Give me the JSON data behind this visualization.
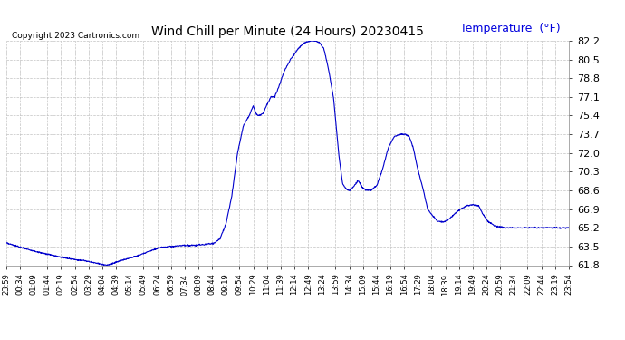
{
  "title": "Wind Chill per Minute (24 Hours) 20230415",
  "ylabel": "Temperature  (°F)",
  "copyright": "Copyright 2023 Cartronics.com",
  "ylabel_color": "#0000dd",
  "line_color": "#0000cc",
  "background_color": "#ffffff",
  "grid_color": "#bbbbbb",
  "ylim": [
    61.8,
    82.2
  ],
  "yticks": [
    61.8,
    63.5,
    65.2,
    66.9,
    68.6,
    70.3,
    72.0,
    73.7,
    75.4,
    77.1,
    78.8,
    80.5,
    82.2
  ],
  "xtick_labels": [
    "23:59",
    "00:34",
    "01:09",
    "01:44",
    "02:19",
    "02:54",
    "03:29",
    "04:04",
    "04:39",
    "05:14",
    "05:49",
    "06:24",
    "06:59",
    "07:34",
    "08:09",
    "08:44",
    "09:19",
    "09:54",
    "10:29",
    "11:04",
    "11:39",
    "12:14",
    "12:49",
    "13:24",
    "13:59",
    "14:34",
    "15:09",
    "15:44",
    "16:19",
    "16:54",
    "17:29",
    "18:04",
    "18:39",
    "19:14",
    "19:49",
    "20:24",
    "20:59",
    "21:34",
    "22:09",
    "22:44",
    "23:19",
    "23:54"
  ],
  "waypoints": [
    [
      0,
      63.8
    ],
    [
      30,
      63.5
    ],
    [
      60,
      63.2
    ],
    [
      90,
      62.9
    ],
    [
      130,
      62.6
    ],
    [
      160,
      62.4
    ],
    [
      200,
      62.2
    ],
    [
      230,
      62.0
    ],
    [
      255,
      61.8
    ],
    [
      275,
      62.0
    ],
    [
      300,
      62.3
    ],
    [
      330,
      62.6
    ],
    [
      360,
      63.0
    ],
    [
      390,
      63.4
    ],
    [
      420,
      63.5
    ],
    [
      450,
      63.6
    ],
    [
      480,
      63.6
    ],
    [
      510,
      63.7
    ],
    [
      530,
      63.8
    ],
    [
      545,
      64.2
    ],
    [
      560,
      65.5
    ],
    [
      575,
      68.0
    ],
    [
      590,
      72.0
    ],
    [
      605,
      74.5
    ],
    [
      620,
      75.4
    ],
    [
      630,
      76.3
    ],
    [
      638,
      75.5
    ],
    [
      645,
      75.4
    ],
    [
      655,
      75.6
    ],
    [
      665,
      76.4
    ],
    [
      675,
      77.1
    ],
    [
      685,
      77.1
    ],
    [
      695,
      78.0
    ],
    [
      710,
      79.5
    ],
    [
      725,
      80.5
    ],
    [
      745,
      81.5
    ],
    [
      760,
      82.0
    ],
    [
      775,
      82.2
    ],
    [
      790,
      82.2
    ],
    [
      800,
      82.0
    ],
    [
      810,
      81.5
    ],
    [
      820,
      80.0
    ],
    [
      835,
      77.0
    ],
    [
      848,
      72.0
    ],
    [
      858,
      69.2
    ],
    [
      868,
      68.7
    ],
    [
      876,
      68.6
    ],
    [
      885,
      68.9
    ],
    [
      898,
      69.5
    ],
    [
      908,
      68.9
    ],
    [
      918,
      68.6
    ],
    [
      930,
      68.6
    ],
    [
      945,
      69.0
    ],
    [
      960,
      70.5
    ],
    [
      975,
      72.5
    ],
    [
      990,
      73.5
    ],
    [
      1005,
      73.7
    ],
    [
      1018,
      73.7
    ],
    [
      1028,
      73.5
    ],
    [
      1038,
      72.5
    ],
    [
      1050,
      70.5
    ],
    [
      1063,
      68.8
    ],
    [
      1075,
      66.9
    ],
    [
      1088,
      66.3
    ],
    [
      1100,
      65.8
    ],
    [
      1115,
      65.7
    ],
    [
      1130,
      66.0
    ],
    [
      1148,
      66.6
    ],
    [
      1160,
      66.9
    ],
    [
      1175,
      67.2
    ],
    [
      1192,
      67.3
    ],
    [
      1205,
      67.2
    ],
    [
      1215,
      66.5
    ],
    [
      1228,
      65.8
    ],
    [
      1245,
      65.4
    ],
    [
      1270,
      65.2
    ],
    [
      1300,
      65.2
    ],
    [
      1340,
      65.2
    ],
    [
      1380,
      65.2
    ],
    [
      1420,
      65.2
    ],
    [
      1435,
      65.2
    ]
  ]
}
